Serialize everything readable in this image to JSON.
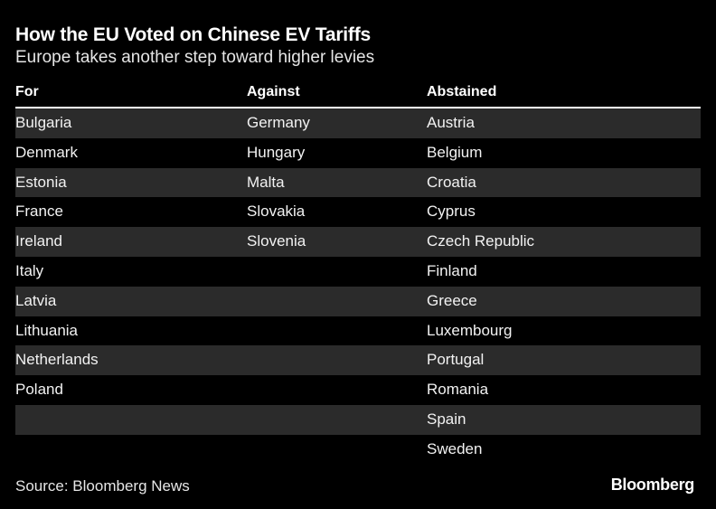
{
  "title": "How the EU Voted on Chinese EV Tariffs",
  "subtitle": "Europe takes another step toward higher levies",
  "source": "Source: Bloomberg News",
  "logo": "Bloomberg",
  "colors": {
    "background": "#000000",
    "text": "#ffffff",
    "row_shade": "#2b2b2b"
  },
  "chart_data": {
    "type": "table",
    "columns": [
      "For",
      "Against",
      "Abstained"
    ],
    "rows": [
      [
        "Bulgaria",
        "Germany",
        "Austria"
      ],
      [
        "Denmark",
        "Hungary",
        "Belgium"
      ],
      [
        "Estonia",
        "Malta",
        "Croatia"
      ],
      [
        "France",
        "Slovakia",
        "Cyprus"
      ],
      [
        "Ireland",
        "Slovenia",
        "Czech Republic"
      ],
      [
        "Italy",
        "",
        "Finland"
      ],
      [
        "Latvia",
        "",
        "Greece"
      ],
      [
        "Lithuania",
        "",
        "Luxembourg"
      ],
      [
        "Netherlands",
        "",
        "Portugal"
      ],
      [
        "Poland",
        "",
        "Romania"
      ],
      [
        "",
        "",
        "Spain"
      ],
      [
        "",
        "",
        "Sweden"
      ]
    ]
  }
}
